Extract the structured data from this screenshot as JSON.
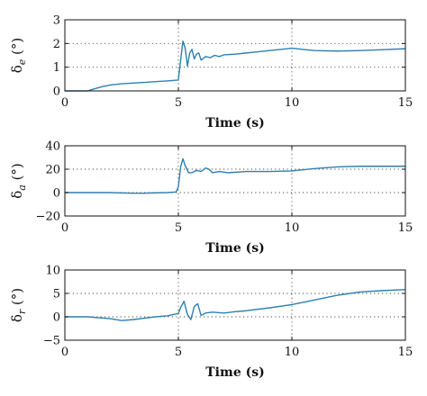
{
  "chart_data": [
    {
      "type": "line",
      "title": "",
      "xlabel": "Time (s)",
      "ylabel_base": "δ",
      "ylabel_sub": "e",
      "ylabel_unit": "(°)",
      "xlim": [
        0,
        15
      ],
      "ylim": [
        0,
        3
      ],
      "x_ticks": [
        0,
        5,
        10,
        15
      ],
      "y_ticks": [
        0,
        1,
        2,
        3
      ],
      "grid": "dotted",
      "line_color": "#2f7fb0",
      "series": [
        {
          "x": [
            0,
            1.0,
            1.2,
            1.6,
            2.0,
            2.5,
            3.0,
            3.5,
            4.0,
            4.5,
            5.0,
            5.1,
            5.2,
            5.3,
            5.4,
            5.5,
            5.6,
            5.7,
            5.8,
            5.9,
            6.0,
            6.2,
            6.4,
            6.6,
            6.8,
            7.0,
            7.5,
            8.0,
            8.5,
            9.0,
            9.5,
            10.0,
            10.5,
            11.0,
            12.0,
            13.0,
            14.0,
            15.0
          ],
          "y": [
            0,
            0,
            0.06,
            0.17,
            0.25,
            0.3,
            0.33,
            0.36,
            0.39,
            0.42,
            0.46,
            1.3,
            2.1,
            1.8,
            1.05,
            1.6,
            1.75,
            1.35,
            1.55,
            1.6,
            1.3,
            1.45,
            1.4,
            1.5,
            1.45,
            1.52,
            1.55,
            1.6,
            1.65,
            1.7,
            1.75,
            1.8,
            1.75,
            1.7,
            1.68,
            1.7,
            1.74,
            1.78
          ]
        }
      ]
    },
    {
      "type": "line",
      "title": "",
      "xlabel": "Time (s)",
      "ylabel_base": "δ",
      "ylabel_sub": "a",
      "ylabel_unit": "(°)",
      "xlim": [
        0,
        15
      ],
      "ylim": [
        -20,
        40
      ],
      "x_ticks": [
        0,
        5,
        10,
        15
      ],
      "y_ticks": [
        -20,
        0,
        20,
        40
      ],
      "grid": "dotted",
      "line_color": "#2f7fb0",
      "series": [
        {
          "x": [
            0,
            1.0,
            2.0,
            3.0,
            3.5,
            4.0,
            4.5,
            4.9,
            5.0,
            5.1,
            5.2,
            5.3,
            5.45,
            5.6,
            5.8,
            6.0,
            6.2,
            6.35,
            6.5,
            6.8,
            7.2,
            8.0,
            9.0,
            10.0,
            11.0,
            12.0,
            13.0,
            14.0,
            15.0
          ],
          "y": [
            0,
            0,
            0,
            -0.5,
            -0.5,
            -0.2,
            0,
            0.5,
            5,
            22,
            29,
            23,
            17,
            17,
            19,
            18,
            21,
            20,
            17,
            18,
            17,
            18,
            18,
            18.5,
            20.5,
            22,
            22.5,
            22.5,
            22.5
          ]
        }
      ]
    },
    {
      "type": "line",
      "title": "",
      "xlabel": "Time (s)",
      "ylabel_base": "δ",
      "ylabel_sub": "r",
      "ylabel_unit": "(°)",
      "xlim": [
        0,
        15
      ],
      "ylim": [
        -5,
        10
      ],
      "x_ticks": [
        0,
        5,
        10,
        15
      ],
      "y_ticks": [
        -5,
        0,
        5,
        10
      ],
      "grid": "dotted",
      "line_color": "#2f7fb0",
      "series": [
        {
          "x": [
            0,
            1.0,
            1.5,
            2.0,
            2.5,
            3.0,
            3.5,
            4.0,
            4.5,
            5.0,
            5.1,
            5.25,
            5.4,
            5.55,
            5.7,
            5.85,
            6.0,
            6.2,
            6.5,
            7.0,
            7.5,
            8.0,
            9.0,
            10.0,
            10.5,
            11.0,
            12.0,
            13.0,
            14.0,
            15.0
          ],
          "y": [
            0,
            0,
            -0.2,
            -0.4,
            -0.8,
            -0.6,
            -0.3,
            0,
            0.2,
            0.7,
            2.0,
            3.3,
            0.5,
            -0.6,
            2.2,
            2.8,
            0.3,
            0.8,
            1.0,
            0.8,
            1.1,
            1.3,
            1.9,
            2.6,
            3.1,
            3.6,
            4.6,
            5.3,
            5.6,
            5.8
          ]
        }
      ]
    }
  ]
}
